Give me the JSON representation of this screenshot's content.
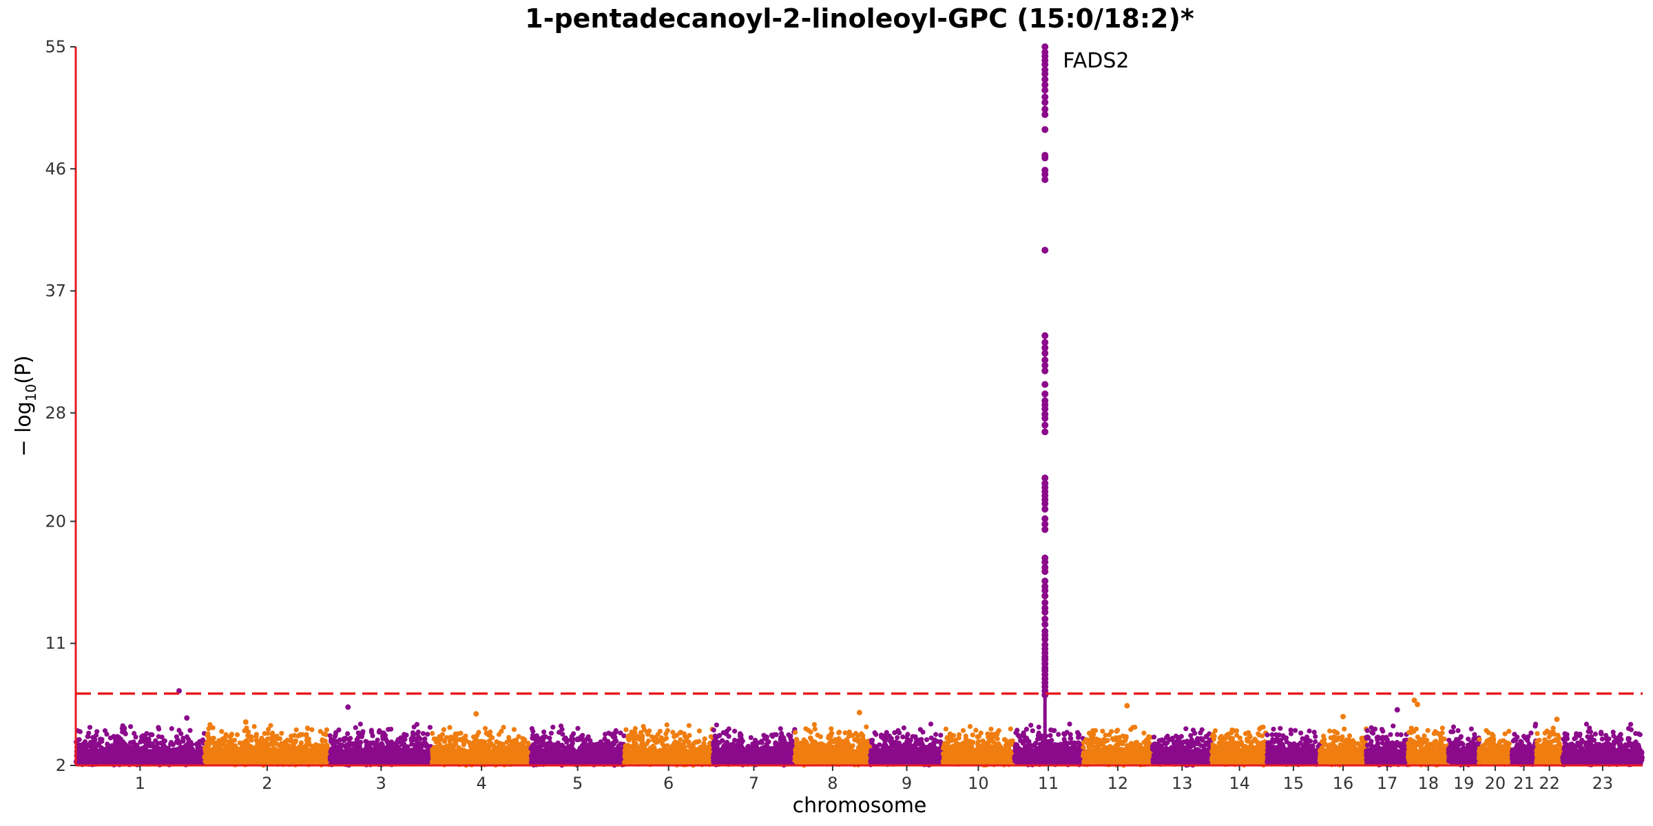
{
  "chart_data": {
    "type": "scatter",
    "subtype": "manhattan",
    "title": "1-pentadecanoyl-2-linoleoyl-GPC (15:0/18:2)*",
    "xlabel": "chromosome",
    "ylabel_parts": {
      "prefix": "− log",
      "sub": "10",
      "suffix": "(P)"
    },
    "ylim": [
      2,
      55
    ],
    "yticks": [
      2,
      11,
      20,
      28,
      37,
      46,
      55
    ],
    "threshold": 7.3,
    "threshold_color": "#e8191f",
    "axis_color": "#e8191f",
    "colors": {
      "odd": "#8b0a8b",
      "even": "#f07d10"
    },
    "grid": false,
    "chromosomes": [
      {
        "label": "1",
        "size": 249,
        "color": "odd"
      },
      {
        "label": "2",
        "size": 243,
        "color": "even"
      },
      {
        "label": "3",
        "size": 198,
        "color": "odd"
      },
      {
        "label": "4",
        "size": 191,
        "color": "even"
      },
      {
        "label": "5",
        "size": 181,
        "color": "odd"
      },
      {
        "label": "6",
        "size": 171,
        "color": "even"
      },
      {
        "label": "7",
        "size": 159,
        "color": "odd"
      },
      {
        "label": "8",
        "size": 146,
        "color": "even"
      },
      {
        "label": "9",
        "size": 141,
        "color": "odd"
      },
      {
        "label": "10",
        "size": 136,
        "color": "even"
      },
      {
        "label": "11",
        "size": 135,
        "color": "odd"
      },
      {
        "label": "12",
        "size": 134,
        "color": "even"
      },
      {
        "label": "13",
        "size": 115,
        "color": "odd"
      },
      {
        "label": "14",
        "size": 107,
        "color": "even"
      },
      {
        "label": "15",
        "size": 102,
        "color": "odd"
      },
      {
        "label": "16",
        "size": 90,
        "color": "even"
      },
      {
        "label": "17",
        "size": 81,
        "color": "odd"
      },
      {
        "label": "18",
        "size": 78,
        "color": "even"
      },
      {
        "label": "19",
        "size": 59,
        "color": "odd"
      },
      {
        "label": "20",
        "size": 63,
        "color": "even"
      },
      {
        "label": "21",
        "size": 48,
        "color": "odd"
      },
      {
        "label": "22",
        "size": 51,
        "color": "even"
      },
      {
        "label": "23",
        "size": 155,
        "color": "odd"
      }
    ],
    "notable_points": [
      {
        "chr": "1",
        "pos": 200,
        "y": 7.5
      },
      {
        "chr": "1",
        "pos": 215,
        "y": 5.5
      },
      {
        "chr": "2",
        "pos": 80,
        "y": 5.2
      },
      {
        "chr": "3",
        "pos": 35,
        "y": 6.3
      },
      {
        "chr": "4",
        "pos": 85,
        "y": 5.8
      },
      {
        "chr": "8",
        "pos": 125,
        "y": 5.9
      },
      {
        "chr": "12",
        "pos": 85,
        "y": 6.4
      },
      {
        "chr": "16",
        "pos": 45,
        "y": 5.6
      },
      {
        "chr": "17",
        "pos": 60,
        "y": 6.1
      },
      {
        "chr": "18",
        "pos": 12,
        "y": 6.8
      },
      {
        "chr": "18",
        "pos": 18,
        "y": 6.5
      },
      {
        "chr": "22",
        "pos": 40,
        "y": 5.4
      }
    ],
    "peak": {
      "chr": "11",
      "pos": 61,
      "y_values": [
        55.0,
        54.6,
        54.3,
        54.0,
        53.7,
        53.3,
        53.0,
        52.6,
        52.2,
        51.8,
        51.3,
        50.9,
        50.4,
        50.0,
        48.9,
        47.0,
        46.8,
        45.9,
        45.6,
        45.2,
        40.0,
        33.7,
        33.2,
        32.8,
        32.4,
        31.9,
        31.5,
        31.1,
        30.1,
        29.4,
        28.9,
        28.6,
        28.3,
        27.9,
        27.6,
        27.1,
        26.6,
        23.2,
        22.8,
        22.5,
        22.2,
        21.9,
        21.6,
        21.3,
        20.9,
        20.2,
        19.8,
        19.4,
        17.3,
        17.0,
        16.6,
        16.3,
        15.6,
        15.2,
        14.9,
        14.5,
        14.0,
        13.6,
        13.3,
        12.8,
        12.4,
        11.9,
        11.6,
        11.3,
        10.9,
        10.6,
        10.3,
        10.0,
        9.8,
        9.5,
        9.2,
        9.0,
        8.7,
        8.4,
        8.1,
        7.8,
        7.5,
        7.2
      ],
      "label": "FADS2"
    }
  }
}
